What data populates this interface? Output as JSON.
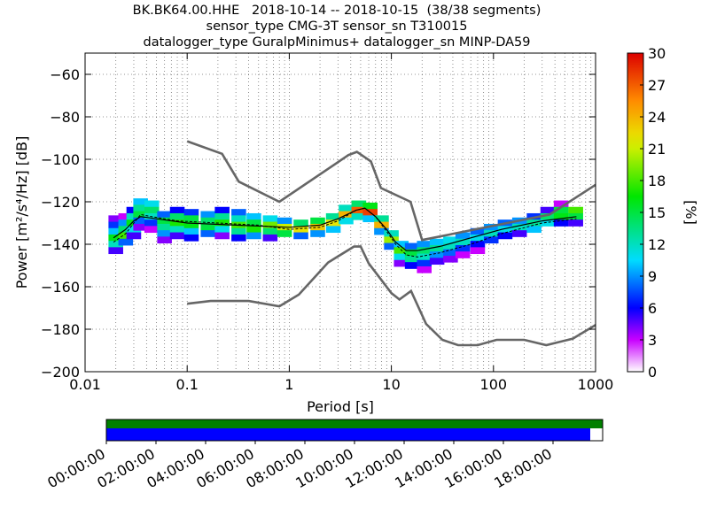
{
  "chart_data": {
    "type": "heatmap",
    "title_lines": [
      "BK.BK64.00.HHE   2018-10-14 -- 2018-10-15  (38/38 segments)",
      "sensor_type CMG-3T sensor_sn T310015",
      "datalogger_type GuralpMinimus+ datalogger_sn MINP-DA59"
    ],
    "xlabel": "Period [s]",
    "ylabel": "Power [m²/s⁴/Hz] [dB]",
    "x_scale": "log",
    "xlim": [
      0.01,
      1000
    ],
    "ylim": [
      -200,
      -50
    ],
    "x_ticks": [
      {
        "value": 0.01,
        "label": "0.01"
      },
      {
        "value": 0.1,
        "label": "0.1"
      },
      {
        "value": 1,
        "label": "1"
      },
      {
        "value": 10,
        "label": "10"
      },
      {
        "value": 100,
        "label": "100"
      },
      {
        "value": 1000,
        "label": "1000"
      }
    ],
    "y_ticks": [
      {
        "value": -60,
        "label": "−60"
      },
      {
        "value": -80,
        "label": "−80"
      },
      {
        "value": -100,
        "label": "−100"
      },
      {
        "value": -120,
        "label": "−120"
      },
      {
        "value": -140,
        "label": "−140"
      },
      {
        "value": -160,
        "label": "−160"
      },
      {
        "value": -180,
        "label": "−180"
      },
      {
        "value": -200,
        "label": "−200"
      }
    ],
    "grid": true,
    "colorbar": {
      "label": "[%]",
      "min": 0,
      "max": 30,
      "ticks": [
        {
          "value": 0,
          "label": "0"
        },
        {
          "value": 3,
          "label": "3"
        },
        {
          "value": 6,
          "label": "6"
        },
        {
          "value": 9,
          "label": "9"
        },
        {
          "value": 12,
          "label": "12"
        },
        {
          "value": 15,
          "label": "15"
        },
        {
          "value": 18,
          "label": "18"
        },
        {
          "value": 21,
          "label": "21"
        },
        {
          "value": 24,
          "label": "24"
        },
        {
          "value": 27,
          "label": "27"
        },
        {
          "value": 30,
          "label": "30"
        }
      ]
    },
    "noise_models": [
      {
        "model": "high",
        "color": "#666666",
        "points": [
          [
            0.1,
            -91.5
          ],
          [
            0.22,
            -97.4
          ],
          [
            0.32,
            -110.5
          ],
          [
            0.8,
            -120
          ],
          [
            3.8,
            -98
          ],
          [
            4.6,
            -96.5
          ],
          [
            6.3,
            -101
          ],
          [
            7.9,
            -113.5
          ],
          [
            15.4,
            -120
          ],
          [
            20,
            -138
          ],
          [
            354.8,
            -126
          ],
          [
            1000,
            -112
          ]
        ]
      },
      {
        "model": "low",
        "color": "#666666",
        "points": [
          [
            0.1,
            -168
          ],
          [
            0.17,
            -166.7
          ],
          [
            0.4,
            -166.7
          ],
          [
            0.8,
            -169.2
          ],
          [
            1.24,
            -163.7
          ],
          [
            2.4,
            -148.6
          ],
          [
            4.3,
            -141.1
          ],
          [
            5,
            -141
          ],
          [
            6,
            -149
          ],
          [
            10,
            -163
          ],
          [
            12,
            -166
          ],
          [
            15.6,
            -162
          ],
          [
            21.9,
            -177.5
          ],
          [
            31.6,
            -185
          ],
          [
            45,
            -187.5
          ],
          [
            70,
            -187.5
          ],
          [
            107.2,
            -185
          ],
          [
            200,
            -185
          ],
          [
            329.2,
            -187.5
          ],
          [
            600,
            -184.4
          ],
          [
            1000,
            -178
          ]
        ]
      }
    ],
    "histogram_cells": [
      {
        "period": 0.02,
        "power": -128,
        "pct": 4
      },
      {
        "period": 0.02,
        "power": -131,
        "pct": 7
      },
      {
        "period": 0.02,
        "power": -134,
        "pct": 10
      },
      {
        "period": 0.02,
        "power": -137,
        "pct": 16
      },
      {
        "period": 0.02,
        "power": -140,
        "pct": 12
      },
      {
        "period": 0.02,
        "power": -143,
        "pct": 5
      },
      {
        "period": 0.025,
        "power": -127,
        "pct": 3
      },
      {
        "period": 0.025,
        "power": -130,
        "pct": 9
      },
      {
        "period": 0.025,
        "power": -133,
        "pct": 14
      },
      {
        "period": 0.025,
        "power": -136,
        "pct": 18
      },
      {
        "period": 0.025,
        "power": -139,
        "pct": 8
      },
      {
        "period": 0.03,
        "power": -124,
        "pct": 6
      },
      {
        "period": 0.03,
        "power": -127,
        "pct": 12
      },
      {
        "period": 0.03,
        "power": -130,
        "pct": 16
      },
      {
        "period": 0.03,
        "power": -133,
        "pct": 11
      },
      {
        "period": 0.03,
        "power": -136,
        "pct": 5
      },
      {
        "period": 0.035,
        "power": -120,
        "pct": 10
      },
      {
        "period": 0.035,
        "power": -123,
        "pct": 13
      },
      {
        "period": 0.035,
        "power": -126,
        "pct": 15
      },
      {
        "period": 0.035,
        "power": -129,
        "pct": 8
      },
      {
        "period": 0.035,
        "power": -132,
        "pct": 4
      },
      {
        "period": 0.045,
        "power": -121,
        "pct": 11
      },
      {
        "period": 0.045,
        "power": -124,
        "pct": 14
      },
      {
        "period": 0.045,
        "power": -127,
        "pct": 12
      },
      {
        "period": 0.045,
        "power": -130,
        "pct": 7
      },
      {
        "period": 0.045,
        "power": -133,
        "pct": 3
      },
      {
        "period": 0.06,
        "power": -126,
        "pct": 8
      },
      {
        "period": 0.06,
        "power": -129,
        "pct": 15
      },
      {
        "period": 0.06,
        "power": -132,
        "pct": 13
      },
      {
        "period": 0.06,
        "power": -135,
        "pct": 9
      },
      {
        "period": 0.06,
        "power": -138,
        "pct": 4
      },
      {
        "period": 0.08,
        "power": -124,
        "pct": 6
      },
      {
        "period": 0.08,
        "power": -127,
        "pct": 14
      },
      {
        "period": 0.08,
        "power": -130,
        "pct": 17
      },
      {
        "period": 0.08,
        "power": -133,
        "pct": 12
      },
      {
        "period": 0.08,
        "power": -136,
        "pct": 5
      },
      {
        "period": 0.11,
        "power": -125,
        "pct": 7
      },
      {
        "period": 0.11,
        "power": -128,
        "pct": 15
      },
      {
        "period": 0.11,
        "power": -131,
        "pct": 16
      },
      {
        "period": 0.11,
        "power": -134,
        "pct": 10
      },
      {
        "period": 0.11,
        "power": -137,
        "pct": 6
      },
      {
        "period": 0.16,
        "power": -126,
        "pct": 9
      },
      {
        "period": 0.16,
        "power": -129,
        "pct": 14
      },
      {
        "period": 0.16,
        "power": -132,
        "pct": 15
      },
      {
        "period": 0.16,
        "power": -135,
        "pct": 8
      },
      {
        "period": 0.22,
        "power": -124,
        "pct": 6
      },
      {
        "period": 0.22,
        "power": -127,
        "pct": 13
      },
      {
        "period": 0.22,
        "power": -130,
        "pct": 17
      },
      {
        "period": 0.22,
        "power": -133,
        "pct": 11
      },
      {
        "period": 0.22,
        "power": -136,
        "pct": 4
      },
      {
        "period": 0.32,
        "power": -125,
        "pct": 8
      },
      {
        "period": 0.32,
        "power": -128,
        "pct": 12
      },
      {
        "period": 0.32,
        "power": -131,
        "pct": 18
      },
      {
        "period": 0.32,
        "power": -134,
        "pct": 13
      },
      {
        "period": 0.32,
        "power": -137,
        "pct": 6
      },
      {
        "period": 0.45,
        "power": -127,
        "pct": 10
      },
      {
        "period": 0.45,
        "power": -130,
        "pct": 15
      },
      {
        "period": 0.45,
        "power": -133,
        "pct": 17
      },
      {
        "period": 0.45,
        "power": -136,
        "pct": 9
      },
      {
        "period": 0.65,
        "power": -128,
        "pct": 11
      },
      {
        "period": 0.65,
        "power": -131,
        "pct": 19
      },
      {
        "period": 0.65,
        "power": -134,
        "pct": 14
      },
      {
        "period": 0.65,
        "power": -137,
        "pct": 5
      },
      {
        "period": 0.9,
        "power": -129,
        "pct": 9
      },
      {
        "period": 0.9,
        "power": -132,
        "pct": 21
      },
      {
        "period": 0.9,
        "power": -135,
        "pct": 15
      },
      {
        "period": 1.3,
        "power": -130,
        "pct": 14
      },
      {
        "period": 1.3,
        "power": -133,
        "pct": 22
      },
      {
        "period": 1.3,
        "power": -136,
        "pct": 8
      },
      {
        "period": 1.9,
        "power": -129,
        "pct": 15
      },
      {
        "period": 1.9,
        "power": -132,
        "pct": 23
      },
      {
        "period": 1.9,
        "power": -135,
        "pct": 9
      },
      {
        "period": 2.7,
        "power": -127,
        "pct": 13
      },
      {
        "period": 2.7,
        "power": -130,
        "pct": 22
      },
      {
        "period": 2.7,
        "power": -133,
        "pct": 10
      },
      {
        "period": 3.6,
        "power": -123,
        "pct": 12
      },
      {
        "period": 3.6,
        "power": -126,
        "pct": 24
      },
      {
        "period": 3.6,
        "power": -129,
        "pct": 11
      },
      {
        "period": 4.8,
        "power": -121,
        "pct": 14
      },
      {
        "period": 4.8,
        "power": -124,
        "pct": 27
      },
      {
        "period": 4.8,
        "power": -127,
        "pct": 12
      },
      {
        "period": 6.2,
        "power": -122,
        "pct": 16
      },
      {
        "period": 6.2,
        "power": -125,
        "pct": 28
      },
      {
        "period": 6.2,
        "power": -128,
        "pct": 10
      },
      {
        "period": 8,
        "power": -128,
        "pct": 13
      },
      {
        "period": 8,
        "power": -131,
        "pct": 24
      },
      {
        "period": 8,
        "power": -134,
        "pct": 9
      },
      {
        "period": 10,
        "power": -135,
        "pct": 12
      },
      {
        "period": 10,
        "power": -138,
        "pct": 20
      },
      {
        "period": 10,
        "power": -141,
        "pct": 8
      },
      {
        "period": 12.5,
        "power": -140,
        "pct": 10
      },
      {
        "period": 12.5,
        "power": -143,
        "pct": 18
      },
      {
        "period": 12.5,
        "power": -146,
        "pct": 11
      },
      {
        "period": 12.5,
        "power": -149,
        "pct": 4
      },
      {
        "period": 16,
        "power": -141,
        "pct": 8
      },
      {
        "period": 16,
        "power": -144,
        "pct": 15
      },
      {
        "period": 16,
        "power": -147,
        "pct": 13
      },
      {
        "period": 16,
        "power": -150,
        "pct": 6
      },
      {
        "period": 21,
        "power": -140,
        "pct": 9
      },
      {
        "period": 21,
        "power": -143,
        "pct": 14
      },
      {
        "period": 21,
        "power": -146,
        "pct": 12
      },
      {
        "period": 21,
        "power": -149,
        "pct": 7
      },
      {
        "period": 21,
        "power": -152,
        "pct": 3
      },
      {
        "period": 28,
        "power": -139,
        "pct": 10
      },
      {
        "period": 28,
        "power": -142,
        "pct": 13
      },
      {
        "period": 28,
        "power": -145,
        "pct": 9
      },
      {
        "period": 28,
        "power": -148,
        "pct": 5
      },
      {
        "period": 38,
        "power": -138,
        "pct": 11
      },
      {
        "period": 38,
        "power": -141,
        "pct": 12
      },
      {
        "period": 38,
        "power": -144,
        "pct": 8
      },
      {
        "period": 38,
        "power": -147,
        "pct": 4
      },
      {
        "period": 50,
        "power": -136,
        "pct": 9
      },
      {
        "period": 50,
        "power": -139,
        "pct": 12
      },
      {
        "period": 50,
        "power": -142,
        "pct": 7
      },
      {
        "period": 50,
        "power": -145,
        "pct": 3
      },
      {
        "period": 70,
        "power": -134,
        "pct": 8
      },
      {
        "period": 70,
        "power": -137,
        "pct": 11
      },
      {
        "period": 70,
        "power": -140,
        "pct": 6
      },
      {
        "period": 70,
        "power": -143,
        "pct": 3
      },
      {
        "period": 95,
        "power": -132,
        "pct": 9
      },
      {
        "period": 95,
        "power": -135,
        "pct": 12
      },
      {
        "period": 95,
        "power": -138,
        "pct": 7
      },
      {
        "period": 130,
        "power": -130,
        "pct": 8
      },
      {
        "period": 130,
        "power": -133,
        "pct": 11
      },
      {
        "period": 130,
        "power": -136,
        "pct": 6
      },
      {
        "period": 180,
        "power": -129,
        "pct": 9
      },
      {
        "period": 180,
        "power": -132,
        "pct": 12
      },
      {
        "period": 180,
        "power": -135,
        "pct": 5
      },
      {
        "period": 250,
        "power": -127,
        "pct": 7
      },
      {
        "period": 250,
        "power": -130,
        "pct": 13
      },
      {
        "period": 250,
        "power": -133,
        "pct": 10
      },
      {
        "period": 340,
        "power": -124,
        "pct": 5
      },
      {
        "period": 340,
        "power": -127,
        "pct": 14
      },
      {
        "period": 340,
        "power": -130,
        "pct": 11
      },
      {
        "period": 460,
        "power": -121,
        "pct": 3
      },
      {
        "period": 460,
        "power": -124,
        "pct": 15
      },
      {
        "period": 460,
        "power": -127,
        "pct": 16
      },
      {
        "period": 460,
        "power": -130,
        "pct": 6
      },
      {
        "period": 640,
        "power": -124,
        "pct": 18
      },
      {
        "period": 640,
        "power": -127,
        "pct": 15
      },
      {
        "period": 640,
        "power": -130,
        "pct": 5
      }
    ],
    "mode_line": [
      [
        0.019,
        -139
      ],
      [
        0.025,
        -135
      ],
      [
        0.03,
        -130
      ],
      [
        0.035,
        -126
      ],
      [
        0.045,
        -127
      ],
      [
        0.08,
        -129
      ],
      [
        0.2,
        -130
      ],
      [
        0.5,
        -131
      ],
      [
        1,
        -133
      ],
      [
        2,
        -132
      ],
      [
        3,
        -129
      ],
      [
        4.5,
        -124
      ],
      [
        5.5,
        -123
      ],
      [
        7,
        -127
      ],
      [
        9,
        -134
      ],
      [
        11,
        -140
      ],
      [
        14,
        -145
      ],
      [
        18,
        -146
      ],
      [
        30,
        -144
      ],
      [
        60,
        -140
      ],
      [
        120,
        -135
      ],
      [
        300,
        -130
      ],
      [
        650,
        -128
      ]
    ],
    "mean_line": [
      [
        0.019,
        -137
      ],
      [
        0.025,
        -133
      ],
      [
        0.03,
        -129
      ],
      [
        0.035,
        -127
      ],
      [
        0.05,
        -128
      ],
      [
        0.1,
        -130
      ],
      [
        0.3,
        -131
      ],
      [
        1,
        -132
      ],
      [
        2,
        -131
      ],
      [
        3,
        -128
      ],
      [
        4.5,
        -124
      ],
      [
        5.5,
        -123
      ],
      [
        7,
        -127
      ],
      [
        9,
        -133
      ],
      [
        11,
        -139
      ],
      [
        14,
        -143
      ],
      [
        18,
        -143
      ],
      [
        30,
        -141
      ],
      [
        60,
        -137
      ],
      [
        120,
        -133
      ],
      [
        300,
        -129
      ],
      [
        650,
        -127
      ]
    ],
    "time_coverage": {
      "tick_labels": [
        "00:00:00",
        "02:00:00",
        "04:00:00",
        "06:00:00",
        "08:00:00",
        "10:00:00",
        "12:00:00",
        "14:00:00",
        "16:00:00",
        "18:00:00"
      ],
      "tick_hours": [
        0,
        2,
        4,
        6,
        8,
        10,
        12,
        14,
        16,
        18
      ],
      "range_hours": [
        0,
        20
      ],
      "data_coverage_end_hours": 20,
      "psd_coverage_end_hours": 19.5,
      "data_color": "#008000",
      "psd_color": "#0000ff"
    }
  }
}
